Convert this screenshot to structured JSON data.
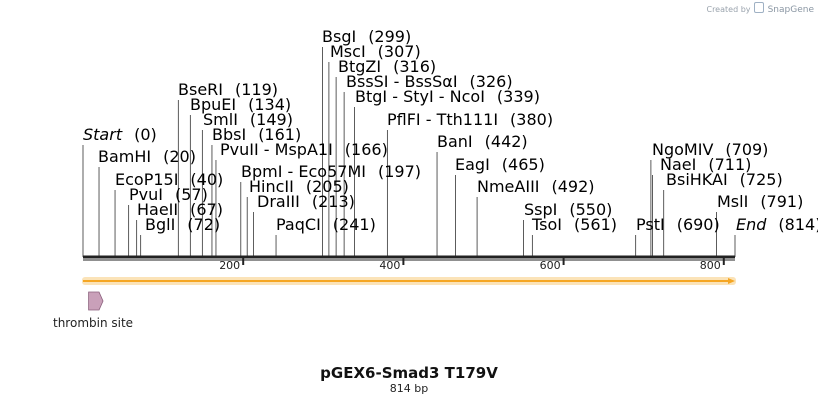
{
  "watermark": {
    "prefix": "Created by",
    "brand": "SnapGene"
  },
  "map": {
    "name": "pGEX6-Smad3 T179V",
    "length_label": "814 bp",
    "length": 814
  },
  "sites": [
    {
      "name": "Start",
      "pos": "(0)",
      "bp": 0,
      "italic": true
    },
    {
      "name": "BamHI",
      "pos": "(20)",
      "bp": 20
    },
    {
      "name": "EcoP15I",
      "pos": "(40)",
      "bp": 40
    },
    {
      "name": "PvuI",
      "pos": "(57)",
      "bp": 57
    },
    {
      "name": "HaeII",
      "pos": "(67)",
      "bp": 67
    },
    {
      "name": "BglI",
      "pos": "(72)",
      "bp": 72
    },
    {
      "name": "BseRI",
      "pos": "(119)",
      "bp": 119
    },
    {
      "name": "BpuEI",
      "pos": "(134)",
      "bp": 134
    },
    {
      "name": "SmlI",
      "pos": "(149)",
      "bp": 149
    },
    {
      "name": "BbsI",
      "pos": "(161)",
      "bp": 161
    },
    {
      "name": "PvuII  -  MspA1I",
      "pos": "(166)",
      "bp": 166
    },
    {
      "name": "BpmI  -  Eco57MI",
      "pos": "(197)",
      "bp": 197
    },
    {
      "name": "HincII",
      "pos": "(205)",
      "bp": 205
    },
    {
      "name": "DraIII",
      "pos": "(213)",
      "bp": 213
    },
    {
      "name": "PaqCI",
      "pos": "(241)",
      "bp": 241
    },
    {
      "name": "BsgI",
      "pos": "(299)",
      "bp": 299
    },
    {
      "name": "MscI",
      "pos": "(307)",
      "bp": 307
    },
    {
      "name": "BtgZI",
      "pos": "(316)",
      "bp": 316
    },
    {
      "name": "BssSI  -  BssSαI",
      "pos": "(326)",
      "bp": 326
    },
    {
      "name": "BtgI  -  StyI  -  NcoI",
      "pos": "(339)",
      "bp": 339
    },
    {
      "name": "PflFI  -  Tth111I",
      "pos": "(380)",
      "bp": 380
    },
    {
      "name": "BanI",
      "pos": "(442)",
      "bp": 442
    },
    {
      "name": "EagI",
      "pos": "(465)",
      "bp": 465
    },
    {
      "name": "NmeAIII",
      "pos": "(492)",
      "bp": 492
    },
    {
      "name": "SspI",
      "pos": "(550)",
      "bp": 550
    },
    {
      "name": "TsoI",
      "pos": "(561)",
      "bp": 561
    },
    {
      "name": "PstI",
      "pos": "(690)",
      "bp": 690
    },
    {
      "name": "NgoMIV",
      "pos": "(709)",
      "bp": 709
    },
    {
      "name": "NaeI",
      "pos": "(711)",
      "bp": 711
    },
    {
      "name": "BsiHKAI",
      "pos": "(725)",
      "bp": 725
    },
    {
      "name": "MslI",
      "pos": "(791)",
      "bp": 791
    },
    {
      "name": "End",
      "pos": "(814)",
      "bp": 814,
      "italic": true
    }
  ],
  "ticks": [
    {
      "label": "200",
      "bp": 200
    },
    {
      "label": "400",
      "bp": 400
    },
    {
      "label": "600",
      "bp": 600
    },
    {
      "label": "800",
      "bp": 800
    }
  ],
  "features": [
    {
      "name": "thrombin site",
      "start_bp": 7,
      "end_bp": 25,
      "color": "#c9a0b9"
    }
  ],
  "colors": {
    "orf": "#f5a623",
    "orf_glow": "#fbe3b8",
    "feature": "#c9a0b9"
  }
}
